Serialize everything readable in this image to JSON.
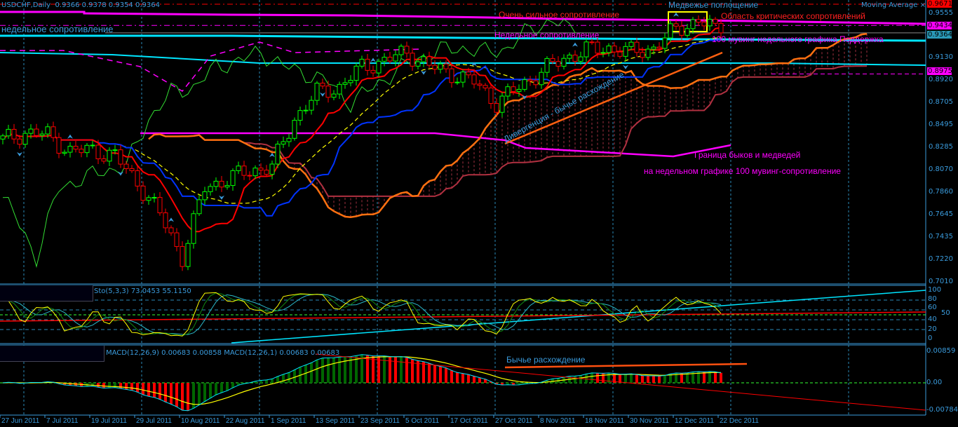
{
  "header": {
    "symbol_info": "USDCHF,Daily",
    "ohlc": "0.9366 0.9378 0.9354 0.9364",
    "indicator_label": "Moving Average",
    "close_icon": "x-icon"
  },
  "stoch_label": "Sto(5,3,3) 73.0453 55.1150",
  "macd_label": "MACD(12,26,9) 0.00683 0.00858   MACD(12,26,1) 0.00683 0.00683",
  "annotations": {
    "weekly_resistance_left": "недельное сопротивление",
    "very_strong_resistance": "Очень сильное сопротивление",
    "bearish_engulfing": "Медвежье поглощение",
    "critical_resistance_area": "Область критических сопротивлений",
    "weekly_resistance_mid": "Недельное сопротивление",
    "ma100_weekly_support": "100 мувинг недельного графика Поддержка",
    "divergence": "Дивергенция - бычье расхождение",
    "bull_bear_border": "Граница быков и медведей",
    "weekly_ma100_resistance": "на недельном графике 100 мувинг-сопротивление",
    "bullish_divergence": "Бычье расхождение"
  },
  "price_tags": [
    {
      "value": "0.9671",
      "color": "#ff0000"
    },
    {
      "value": "0.9434",
      "color": "#ff00ff"
    },
    {
      "value": "0.9364",
      "color": "#2a9ab8"
    },
    {
      "value": "0.8975",
      "color": "#ff00ff"
    }
  ],
  "colors": {
    "up": "#00ff00",
    "down": "#ff0000",
    "axis": "#3a9bdc",
    "tenkan": "#ff0000",
    "kijun": "#0033ff",
    "span_a": "#ff7010",
    "span_b": "#b03040",
    "chikou": "#33dd33",
    "magenta": "#ff00ff",
    "cyan": "#00e5ff"
  },
  "chart_data": {
    "type": "candlestick",
    "symbol": "USDCHF",
    "timeframe": "Daily",
    "x_tick_labels": [
      "27 Jun 2011",
      "7 Jul 2011",
      "19 Jul 2011",
      "29 Jul 2011",
      "10 Aug 2011",
      "22 Aug 2011",
      "1 Sep 2011",
      "13 Sep 2011",
      "23 Sep 2011",
      "5 Oct 2011",
      "17 Oct 2011",
      "27 Oct 2011",
      "8 Nov 2011",
      "18 Nov 2011",
      "30 Nov 2011",
      "12 Dec 2011",
      "22 Dec 2011"
    ],
    "y_tick_labels": [
      "0.9555",
      "0.9130",
      "0.8920",
      "0.8705",
      "0.8495",
      "0.8285",
      "0.8070",
      "0.7860",
      "0.7645",
      "0.7435",
      "0.7220",
      "0.7010"
    ],
    "ylim": [
      0.701,
      0.9555
    ],
    "closes_approx": [
      0.835,
      0.842,
      0.84,
      0.824,
      0.826,
      0.82,
      0.795,
      0.765,
      0.724,
      0.79,
      0.798,
      0.806,
      0.81,
      0.855,
      0.88,
      0.885,
      0.904,
      0.91,
      0.918,
      0.905,
      0.898,
      0.89,
      0.87,
      0.885,
      0.9,
      0.912,
      0.92,
      0.922,
      0.918,
      0.922,
      0.94,
      0.948,
      0.9364
    ],
    "last_ohlc": {
      "open": 0.9366,
      "high": 0.9378,
      "low": 0.9354,
      "close": 0.9364
    },
    "levels": [
      0.9671,
      0.9434,
      0.9364,
      0.8975
    ],
    "stoch": {
      "params": "5,3,3",
      "main": 73.0453,
      "signal": 55.115,
      "y_tick_labels": [
        "100",
        "80",
        "60",
        "50",
        "40",
        "20",
        "0"
      ]
    },
    "macd": {
      "params": "12,26,9",
      "main": 0.00683,
      "signal": 0.00858,
      "y_tick_labels": [
        "0.00859",
        "0.00",
        "-0.00784"
      ]
    }
  }
}
